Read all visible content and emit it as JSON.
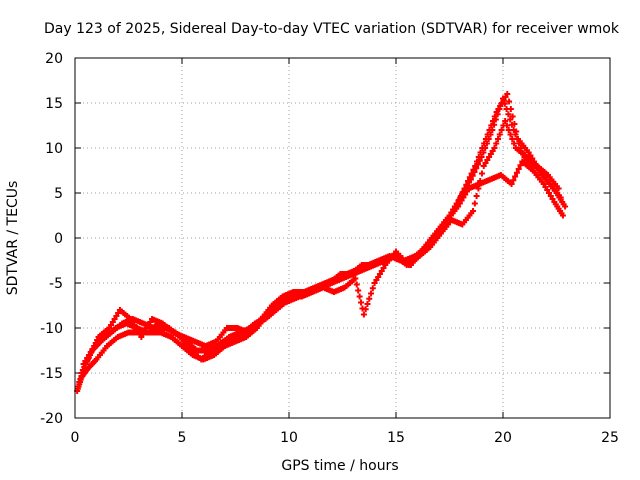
{
  "chart_data": {
    "type": "scatter",
    "title": "Day 123 of 2025, Sidereal Day-to-day VTEC variation (SDTVAR) for receiver wmok",
    "xlabel": "GPS time / hours",
    "ylabel": "SDTVAR / TECUs",
    "xlim": [
      0,
      25
    ],
    "ylim": [
      -20,
      20
    ],
    "xticks": [
      "0",
      "5",
      "10",
      "15",
      "20",
      "25"
    ],
    "yticks": [
      "-20",
      "-15",
      "-10",
      "-5",
      "0",
      "5",
      "10",
      "15",
      "20"
    ],
    "grid": true,
    "marker": "+",
    "series_color": "#ff0000",
    "series": [
      {
        "name": "track-1",
        "x": [
          0.1,
          0.3,
          0.6,
          1.0,
          1.5,
          2.0,
          2.5,
          3.0,
          3.5,
          4.0,
          4.5,
          5.0,
          5.5,
          6.0,
          6.5,
          7.0,
          7.5,
          8.0,
          8.5,
          9.0,
          9.5,
          10.0,
          10.5,
          11.0,
          11.5,
          12.0,
          12.5,
          13.0,
          13.5,
          14.0,
          14.5,
          15.0,
          15.5,
          16.0,
          16.5,
          17.0,
          17.5,
          18.0,
          18.5,
          19.0,
          19.5,
          20.0,
          20.5,
          21.0,
          21.5,
          22.0,
          22.5,
          22.9
        ],
        "y": [
          -17,
          -15.5,
          -14.5,
          -13.5,
          -12,
          -11,
          -10.5,
          -10.5,
          -10.5,
          -10.5,
          -11,
          -12,
          -13,
          -13.5,
          -13,
          -12,
          -11.5,
          -11,
          -10,
          -8.5,
          -7.5,
          -7,
          -6.5,
          -6,
          -5.5,
          -5,
          -4.5,
          -4,
          -3.5,
          -3,
          -2.5,
          -2,
          -3,
          -2,
          -0.5,
          1,
          2.5,
          4.5,
          6.5,
          9,
          12,
          15.5,
          12,
          9,
          8,
          6.5,
          5,
          3.5
        ]
      },
      {
        "name": "track-2",
        "x": [
          0.2,
          0.5,
          0.8,
          1.2,
          1.7,
          2.2,
          2.7,
          3.2,
          3.7,
          4.2,
          4.7,
          5.2,
          5.7,
          6.2,
          6.7,
          7.2,
          7.7,
          8.2,
          8.7,
          9.2,
          9.7,
          10.2,
          10.7,
          11.2,
          11.7,
          12.2,
          12.7,
          13.2,
          13.7,
          14.2,
          14.7,
          15.2,
          15.7,
          16.2,
          16.7,
          17.2,
          17.7,
          18.2,
          18.7,
          19.2,
          19.7,
          20.2,
          20.7,
          21.2,
          21.7,
          22.2,
          22.7
        ],
        "y": [
          -16,
          -14,
          -12.5,
          -11.5,
          -10.5,
          -9.5,
          -9,
          -9.5,
          -10,
          -10,
          -10.5,
          -11.5,
          -12.5,
          -12.5,
          -12,
          -11,
          -10.5,
          -10,
          -9,
          -7.5,
          -6.5,
          -6,
          -6,
          -5.5,
          -5,
          -4.5,
          -4,
          -3.5,
          -3,
          -2.5,
          -2,
          -2.5,
          -3,
          -1.5,
          0,
          1.5,
          3,
          5.5,
          8,
          11,
          14,
          16,
          11,
          9.5,
          7.5,
          6,
          4.5
        ]
      },
      {
        "name": "track-3",
        "x": [
          0.4,
          0.9,
          1.4,
          1.9,
          2.4,
          2.9,
          3.4,
          3.9,
          4.4,
          4.9,
          5.4,
          5.9,
          6.4,
          6.9,
          7.4,
          7.9,
          8.4,
          8.9,
          9.4,
          9.9,
          10.4,
          10.9,
          11.4,
          11.9,
          12.4,
          12.9,
          13.4,
          13.9,
          14.4,
          14.9,
          15.4,
          15.9,
          16.4,
          16.9,
          17.4,
          17.9,
          18.4,
          18.9,
          19.4,
          19.9,
          20.4,
          20.9,
          21.4,
          21.9,
          22.4,
          22.8
        ],
        "y": [
          -14,
          -12,
          -11,
          -10,
          -9.5,
          -10,
          -10.5,
          -9.5,
          -10,
          -11,
          -12.5,
          -13.5,
          -12.5,
          -11.5,
          -11,
          -10.5,
          -9.5,
          -9,
          -8,
          -7,
          -6.5,
          -6,
          -5.5,
          -5,
          -4,
          -4,
          -3,
          -3,
          -2.5,
          -2,
          -2.5,
          -2,
          -1,
          0.5,
          2,
          3.5,
          5.5,
          6,
          6.5,
          7,
          6,
          8.5,
          7.5,
          6,
          4,
          2.5
        ]
      },
      {
        "name": "track-4",
        "x": [
          0.3,
          0.7,
          1.1,
          1.6,
          2.1,
          2.6,
          3.1,
          3.6,
          4.1,
          4.6,
          5.1,
          5.6,
          6.1,
          6.6,
          7.1,
          7.6,
          8.1,
          8.6,
          9.1,
          9.6,
          10.1,
          10.6,
          11.1,
          11.6,
          12.1,
          12.6,
          13.1,
          13.5,
          14.0,
          14.5,
          15.0,
          15.6,
          16.1,
          16.6,
          17.1,
          17.6,
          18.1,
          18.6,
          19.1,
          19.6,
          20.1,
          20.6,
          21.1,
          21.6,
          22.1,
          22.6
        ],
        "y": [
          -15,
          -13,
          -11,
          -10,
          -8,
          -9,
          -11,
          -9,
          -9.5,
          -10.5,
          -11,
          -11.5,
          -12,
          -11.5,
          -10,
          -10,
          -10.5,
          -9.5,
          -8,
          -7,
          -6.5,
          -6.5,
          -6,
          -5.5,
          -6,
          -5.5,
          -4.5,
          -8.5,
          -5,
          -3,
          -1.5,
          -3,
          -2,
          -1,
          0.5,
          2,
          1.5,
          3,
          8,
          10,
          13,
          10,
          9,
          8,
          7,
          5.5
        ]
      }
    ]
  }
}
